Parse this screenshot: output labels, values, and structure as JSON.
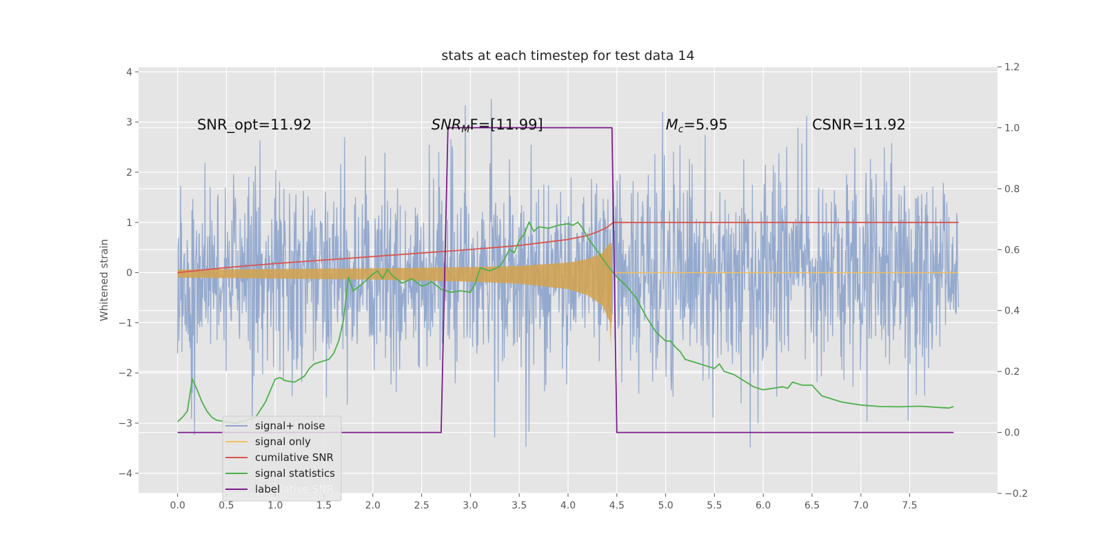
{
  "chart_data": {
    "type": "line",
    "title": "stats at each timestep for test data 14",
    "ylabel": "Whitened strain",
    "xlabel": "",
    "xlim": [
      -0.4,
      8.4
    ],
    "ylim": [
      -4.4,
      4.1
    ],
    "y2lim": [
      -0.2,
      1.2
    ],
    "xticks": [
      "0.0",
      "0.5",
      "1.0",
      "1.5",
      "2.0",
      "2.5",
      "3.0",
      "3.5",
      "4.0",
      "4.5",
      "5.0",
      "5.5",
      "6.0",
      "6.5",
      "7.0",
      "7.5"
    ],
    "yticks": [
      "4",
      "3",
      "2",
      "1",
      "0",
      "−1",
      "−2",
      "−3",
      "−4"
    ],
    "y2ticks": [
      "1.2",
      "1.0",
      "0.8",
      "0.6",
      "0.4",
      "0.2",
      "0.0",
      "−0.2"
    ],
    "grid": true,
    "legend_position": "lower-left",
    "annotations": [
      {
        "name": "snr-opt",
        "text": "SNR_opt=11.92",
        "x": 0.2,
        "y": 2.93
      },
      {
        "name": "snr-mf",
        "text": "SNR_MF=[11.99]",
        "prefix": "SNR",
        "sub": "M",
        "suffix": "F=[11.99]",
        "x": 2.6,
        "y": 2.93
      },
      {
        "name": "mc",
        "text": "M_c=5.95",
        "prefix": "M",
        "sub": "c",
        "suffix": "=5.95",
        "x": 5.0,
        "y": 2.93
      },
      {
        "name": "csnr",
        "text": "CSNR=11.92",
        "x": 6.5,
        "y": 2.93
      }
    ],
    "series": [
      {
        "name": "signal+ noise",
        "axis": "left",
        "color": "#8fa5cc",
        "kind": "noise",
        "x_range": [
          0.0,
          8.0
        ],
        "sigma": 1.0,
        "approx_envelope": [
          -3.9,
          3.8
        ]
      },
      {
        "name": "signal only",
        "axis": "left",
        "color": "#f2c15c",
        "kind": "chirp",
        "x_range": [
          0.0,
          8.0
        ],
        "merger_x": 4.45,
        "envelope_x": [
          0.0,
          1.0,
          2.0,
          3.0,
          3.5,
          4.0,
          4.2,
          4.35,
          4.42,
          4.45
        ],
        "envelope_y": [
          0.1,
          0.12,
          0.14,
          0.18,
          0.22,
          0.33,
          0.45,
          0.65,
          0.95,
          1.0
        ]
      },
      {
        "name": "cumilative SNR",
        "axis": "left",
        "color": "#d9534f",
        "x": [
          0.0,
          0.5,
          1.0,
          1.5,
          2.0,
          2.5,
          3.0,
          3.5,
          4.0,
          4.2,
          4.3,
          4.4,
          4.45,
          4.46,
          8.0
        ],
        "y": [
          0.0,
          0.1,
          0.18,
          0.25,
          0.32,
          0.39,
          0.46,
          0.54,
          0.66,
          0.74,
          0.81,
          0.9,
          0.98,
          1.0,
          1.0
        ]
      },
      {
        "name": "signal statistics",
        "axis": "right",
        "color": "#4daf4a",
        "x": [
          0.0,
          0.05,
          0.1,
          0.15,
          0.2,
          0.25,
          0.3,
          0.35,
          0.4,
          0.5,
          0.6,
          0.7,
          0.8,
          0.9,
          1.0,
          1.05,
          1.1,
          1.2,
          1.3,
          1.35,
          1.4,
          1.45,
          1.5,
          1.55,
          1.6,
          1.65,
          1.7,
          1.75,
          1.8,
          1.9,
          2.0,
          2.05,
          2.1,
          2.15,
          2.2,
          2.3,
          2.4,
          2.5,
          2.55,
          2.6,
          2.7,
          2.8,
          2.9,
          3.0,
          3.05,
          3.1,
          3.2,
          3.3,
          3.35,
          3.4,
          3.45,
          3.5,
          3.55,
          3.6,
          3.65,
          3.7,
          3.8,
          3.9,
          4.0,
          4.05,
          4.1,
          4.15,
          4.2,
          4.3,
          4.4,
          4.5,
          4.6,
          4.7,
          4.8,
          4.9,
          5.0,
          5.05,
          5.1,
          5.15,
          5.2,
          5.3,
          5.4,
          5.5,
          5.55,
          5.6,
          5.7,
          5.8,
          5.9,
          6.0,
          6.1,
          6.2,
          6.25,
          6.3,
          6.35,
          6.4,
          6.5,
          6.6,
          6.7,
          6.8,
          6.9,
          7.0,
          7.2,
          7.4,
          7.6,
          7.8,
          7.9,
          7.95
        ],
        "y": [
          0.035,
          0.05,
          0.07,
          0.175,
          0.14,
          0.1,
          0.07,
          0.05,
          0.04,
          0.035,
          0.03,
          0.04,
          0.05,
          0.1,
          0.175,
          0.18,
          0.17,
          0.165,
          0.185,
          0.21,
          0.225,
          0.23,
          0.235,
          0.24,
          0.26,
          0.3,
          0.37,
          0.51,
          0.465,
          0.49,
          0.52,
          0.53,
          0.505,
          0.535,
          0.515,
          0.49,
          0.505,
          0.48,
          0.485,
          0.495,
          0.47,
          0.46,
          0.465,
          0.46,
          0.49,
          0.54,
          0.53,
          0.545,
          0.57,
          0.6,
          0.59,
          0.63,
          0.65,
          0.69,
          0.66,
          0.675,
          0.67,
          0.68,
          0.685,
          0.68,
          0.69,
          0.67,
          0.64,
          0.595,
          0.55,
          0.51,
          0.48,
          0.44,
          0.38,
          0.33,
          0.3,
          0.3,
          0.28,
          0.265,
          0.24,
          0.23,
          0.22,
          0.21,
          0.225,
          0.2,
          0.19,
          0.17,
          0.15,
          0.14,
          0.145,
          0.15,
          0.145,
          0.165,
          0.16,
          0.155,
          0.155,
          0.12,
          0.11,
          0.1,
          0.095,
          0.09,
          0.085,
          0.084,
          0.086,
          0.082,
          0.08,
          0.085
        ]
      },
      {
        "name": "label",
        "axis": "right",
        "color": "#7b1a8c",
        "x": [
          0.0,
          2.7,
          2.77,
          4.45,
          4.5,
          7.95
        ],
        "y": [
          0.0,
          0.0,
          1.0,
          1.0,
          0.0,
          0.0
        ]
      }
    ],
    "legend_ghost_text": "cumilative SNR"
  }
}
